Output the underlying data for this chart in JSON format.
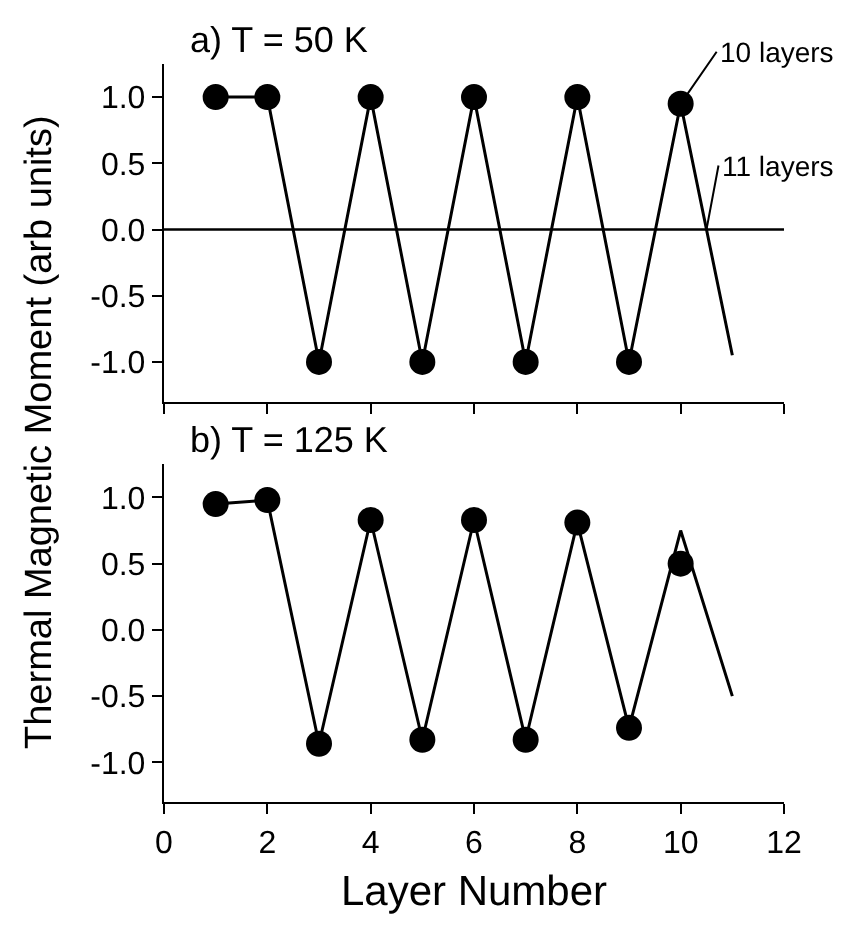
{
  "chart_data": [
    {
      "type": "scatter",
      "title": "a) T = 50 K",
      "ylabel": "Thermal Magnetic Moment (arb units)",
      "xlim": [
        0,
        12
      ],
      "xticks": [
        0,
        2,
        4,
        6,
        8,
        10,
        12
      ],
      "ylim": [
        -1.3,
        1.25
      ],
      "yticks": [
        {
          "value": -1,
          "label": "-1.0"
        },
        {
          "value": -0.5,
          "label": "-0.5"
        },
        {
          "value": 0,
          "label": "0.0"
        },
        {
          "value": 0.5,
          "label": "0.5"
        },
        {
          "value": 1,
          "label": "1.0"
        }
      ],
      "tick_labels": "y",
      "grid": false,
      "legend": false,
      "series": [
        {
          "name": "10 layers",
          "marker": "circle",
          "color": "#000000",
          "x": [
            1,
            2,
            3,
            4,
            5,
            6,
            7,
            8,
            9,
            10
          ],
          "values": [
            1.0,
            1.0,
            -1.0,
            1.0,
            -1.0,
            1.0,
            -1.0,
            1.0,
            -1.0,
            0.95
          ]
        },
        {
          "name": "11 layers",
          "type": "line",
          "marker": "none",
          "line_style": "solid",
          "color": "#000000",
          "x": [
            1,
            2,
            3,
            4,
            5,
            6,
            7,
            8,
            9,
            10,
            11
          ],
          "values": [
            1.0,
            1.0,
            -1.0,
            1.0,
            -1.0,
            1.0,
            -1.0,
            1.0,
            -1.0,
            0.95,
            -0.95
          ]
        }
      ],
      "ref_lines": [
        {
          "axis": "y",
          "value": 0,
          "color": "#000000",
          "line_style": "solid"
        }
      ]
    },
    {
      "type": "scatter",
      "title": "b) T = 125 K",
      "xlabel": "Layer Number",
      "xlim": [
        0,
        12
      ],
      "xticks": [
        0,
        2,
        4,
        6,
        8,
        10,
        12
      ],
      "ylim": [
        -1.3,
        1.25
      ],
      "yticks": [
        {
          "value": -1,
          "label": "-1.0"
        },
        {
          "value": -0.5,
          "label": "-0.5"
        },
        {
          "value": 0,
          "label": "0.0"
        },
        {
          "value": 0.5,
          "label": "0.5"
        },
        {
          "value": 1,
          "label": "1.0"
        }
      ],
      "grid": false,
      "legend": false,
      "series": [
        {
          "marker": "circle",
          "color": "#000000",
          "x": [
            1,
            2,
            3,
            4,
            5,
            6,
            7,
            8,
            9,
            10
          ],
          "values": [
            0.95,
            0.98,
            -0.86,
            0.83,
            -0.83,
            0.83,
            -0.83,
            0.81,
            -0.74,
            0.5
          ]
        },
        {
          "type": "line",
          "marker": "none",
          "line_style": "solid",
          "color": "#000000",
          "x": [
            1,
            2,
            3,
            4,
            5,
            6,
            7,
            8,
            9,
            10,
            11
          ],
          "values": [
            0.95,
            0.98,
            -0.86,
            0.83,
            -0.83,
            0.83,
            -0.83,
            0.81,
            -0.74,
            0.75,
            -0.5
          ]
        }
      ]
    }
  ]
}
